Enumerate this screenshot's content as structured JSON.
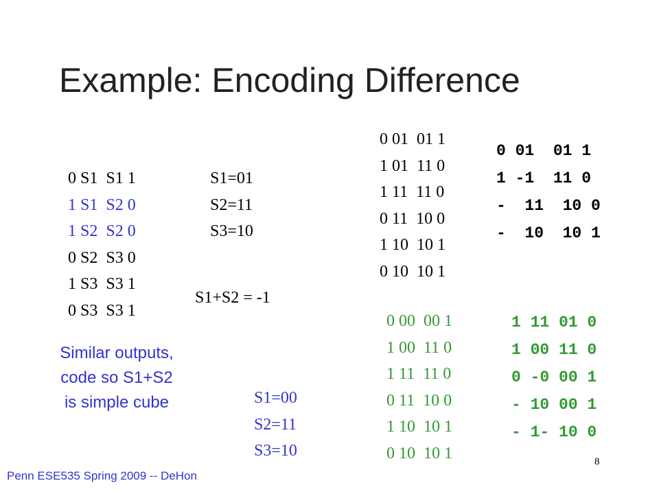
{
  "title": "Example: Encoding Difference",
  "fsm_table": [
    "0 S1  S1 1",
    "1 S1  S2 0",
    "1 S2  S2 0",
    "0 S2  S3 0",
    "1 S3  S3 1",
    "0 S3  S3 1"
  ],
  "encoding_1": [
    "S1=01",
    "S2=11",
    "S3=10"
  ],
  "sum_note": "S1+S2 = -1",
  "encoded_table_1": [
    "0 01  01 1",
    "1 01  11 0",
    "1 11  11 0",
    "0 11  10 0",
    "1 10  10 1",
    "0 10  10 1"
  ],
  "minimized_1": [
    "0 01  01 1",
    "1 -1  11 0",
    "-  11  10 0",
    "-  10  10 1"
  ],
  "note": [
    "Similar outputs,",
    "code so S1+S2",
    "is simple cube"
  ],
  "encoding_2": [
    "S1=00",
    "S2=11",
    "S3=10"
  ],
  "encoded_table_2": [
    "0 00  00 1",
    "1 00  11 0",
    "1 11  11 0",
    "0 11  10 0",
    "1 10  10 1",
    "0 10  10 1"
  ],
  "minimized_2": [
    "1 11 01 0",
    "1 00 11 0",
    "0 -0 00 1",
    "- 10 00 1",
    "- 1- 10 0"
  ],
  "footer": "Penn ESE535 Spring 2009 -- DeHon",
  "page_number": "8"
}
